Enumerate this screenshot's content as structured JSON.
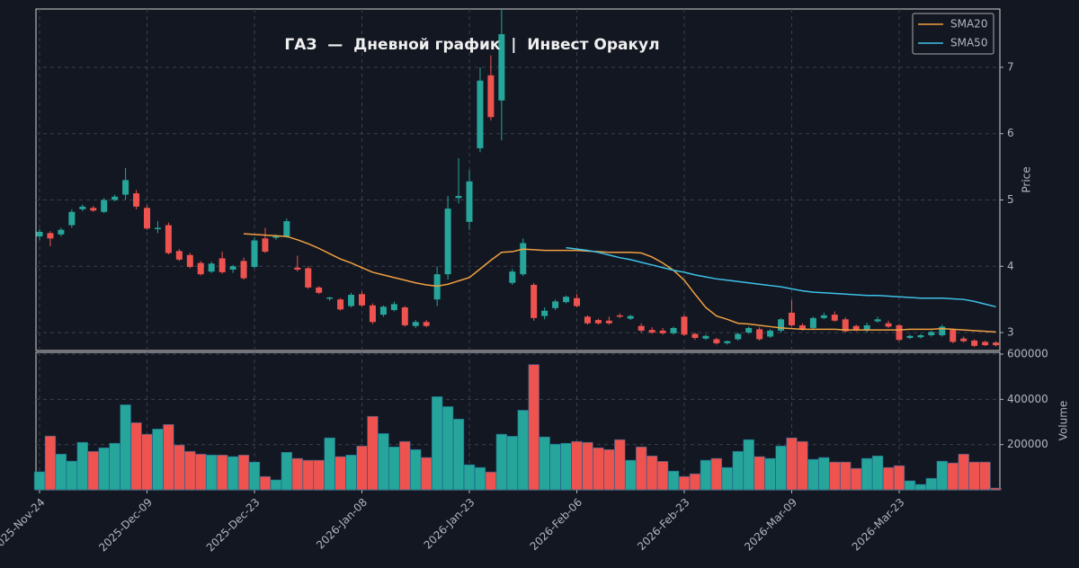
{
  "chart_data": {
    "type": "candlestick",
    "title": "ГАЗ  —  Дневной график  |  Инвест Оракул",
    "ylabel": "Price",
    "categories": [
      "2025-Nov-24",
      null,
      null,
      null,
      null,
      null,
      null,
      null,
      null,
      null,
      "2025-Dec-09",
      null,
      null,
      null,
      null,
      null,
      null,
      null,
      null,
      null,
      "2025-Dec-23",
      null,
      null,
      null,
      null,
      null,
      null,
      null,
      null,
      null,
      "2026-Jan-08",
      null,
      null,
      null,
      null,
      null,
      null,
      null,
      null,
      null,
      "2026-Jan-23",
      null,
      null,
      null,
      null,
      null,
      null,
      null,
      null,
      null,
      "2026-Feb-06",
      null,
      null,
      null,
      null,
      null,
      null,
      null,
      null,
      null,
      "2026-Feb-23",
      null,
      null,
      null,
      null,
      null,
      null,
      null,
      null,
      null,
      "2026-Mar-09",
      null,
      null,
      null,
      null,
      null,
      null,
      null,
      null,
      null,
      "2026-Mar-23",
      null,
      null,
      null,
      null,
      null,
      null,
      null,
      null,
      null
    ],
    "open": [
      4.45,
      4.5,
      4.48,
      4.62,
      4.86,
      4.88,
      4.82,
      5.0,
      5.08,
      5.1,
      4.88,
      4.56,
      4.62,
      4.23,
      4.17,
      4.05,
      3.92,
      4.12,
      3.95,
      4.08,
      3.99,
      4.42,
      4.43,
      4.45,
      3.98,
      3.97,
      3.68,
      3.51,
      3.5,
      3.4,
      3.58,
      3.41,
      3.27,
      3.34,
      3.38,
      3.1,
      3.16,
      3.5,
      3.88,
      5.03,
      4.67,
      5.78,
      6.88,
      6.5,
      3.75,
      3.88,
      3.72,
      3.25,
      3.37,
      3.46,
      3.52,
      3.24,
      3.19,
      3.18,
      3.26,
      3.21,
      3.1,
      3.04,
      3.03,
      2.99,
      3.24,
      2.98,
      2.91,
      2.9,
      2.84,
      2.9,
      3.0,
      3.05,
      2.94,
      3.03,
      3.3,
      3.11,
      3.07,
      3.22,
      3.27,
      3.2,
      3.1,
      3.03,
      3.17,
      3.14,
      3.11,
      2.92,
      2.93,
      2.96,
      2.96,
      3.04,
      2.91,
      2.88,
      2.86,
      2.85
    ],
    "high": [
      4.56,
      4.53,
      4.58,
      4.86,
      4.93,
      4.91,
      5.03,
      5.08,
      5.48,
      5.15,
      4.92,
      4.68,
      4.66,
      4.26,
      4.2,
      4.08,
      4.07,
      4.22,
      4.02,
      4.13,
      4.44,
      4.58,
      4.48,
      4.72,
      4.16,
      4.0,
      3.7,
      3.54,
      3.52,
      3.6,
      3.62,
      3.44,
      3.41,
      3.47,
      3.4,
      3.19,
      3.19,
      4.0,
      5.06,
      5.63,
      5.45,
      7.0,
      7.18,
      7.88,
      3.96,
      4.42,
      3.75,
      3.38,
      3.5,
      3.56,
      3.58,
      3.26,
      3.21,
      3.24,
      3.29,
      3.27,
      3.14,
      3.08,
      3.07,
      3.09,
      3.27,
      3.0,
      2.97,
      2.92,
      2.88,
      3.0,
      3.09,
      3.08,
      3.05,
      3.22,
      3.49,
      3.14,
      3.24,
      3.3,
      3.32,
      3.23,
      3.12,
      3.15,
      3.24,
      3.18,
      3.13,
      2.97,
      2.98,
      3.03,
      3.12,
      3.06,
      2.94,
      2.9,
      2.88,
      2.87
    ],
    "low": [
      4.4,
      4.3,
      4.45,
      4.58,
      4.83,
      4.82,
      4.8,
      4.98,
      5.0,
      4.86,
      4.55,
      4.5,
      4.18,
      4.08,
      3.97,
      3.86,
      3.9,
      3.89,
      3.9,
      3.8,
      3.97,
      4.2,
      4.4,
      4.43,
      3.92,
      3.66,
      3.58,
      3.48,
      3.33,
      3.38,
      3.39,
      3.13,
      3.24,
      3.32,
      3.09,
      3.07,
      3.08,
      3.4,
      3.8,
      4.95,
      4.55,
      5.72,
      6.2,
      5.9,
      3.72,
      3.85,
      3.18,
      3.2,
      3.34,
      3.44,
      3.38,
      3.12,
      3.12,
      3.12,
      3.22,
      3.19,
      3.0,
      2.98,
      2.97,
      2.97,
      2.95,
      2.89,
      2.89,
      2.82,
      2.82,
      2.88,
      2.98,
      2.88,
      2.92,
      3.0,
      3.09,
      3.03,
      3.05,
      3.2,
      3.16,
      3.0,
      3.02,
      3.0,
      3.15,
      3.07,
      2.87,
      2.9,
      2.91,
      2.94,
      2.94,
      2.84,
      2.85,
      2.78,
      2.8,
      2.79
    ],
    "close": [
      4.52,
      4.42,
      4.55,
      4.82,
      4.9,
      4.84,
      5.0,
      5.05,
      5.3,
      4.9,
      4.57,
      4.58,
      4.2,
      4.1,
      3.99,
      3.88,
      4.04,
      3.91,
      4.0,
      3.82,
      4.39,
      4.22,
      4.46,
      4.68,
      3.95,
      3.68,
      3.6,
      3.53,
      3.35,
      3.57,
      3.41,
      3.16,
      3.39,
      3.43,
      3.11,
      3.16,
      3.1,
      3.88,
      4.87,
      5.06,
      5.28,
      6.8,
      6.25,
      7.5,
      3.92,
      4.35,
      3.22,
      3.33,
      3.47,
      3.54,
      3.4,
      3.14,
      3.14,
      3.14,
      3.24,
      3.25,
      3.03,
      3.0,
      2.99,
      3.07,
      2.97,
      2.92,
      2.95,
      2.84,
      2.87,
      2.98,
      3.07,
      2.9,
      3.03,
      3.2,
      3.11,
      3.05,
      3.22,
      3.26,
      3.18,
      3.02,
      3.04,
      3.11,
      3.2,
      3.09,
      2.89,
      2.95,
      2.96,
      3.01,
      3.09,
      2.86,
      2.87,
      2.8,
      2.81,
      2.81
    ],
    "up_color": "#26a69a",
    "down_color": "#ef5350",
    "ylim": [
      2.73,
      7.88
    ],
    "yticks": [
      3,
      4,
      5,
      6,
      7
    ],
    "grid": true,
    "legend": "upper right",
    "series": [
      {
        "name": "SMA20",
        "color": "#f0a040",
        "values": [
          null,
          null,
          null,
          null,
          null,
          null,
          null,
          null,
          null,
          null,
          null,
          null,
          null,
          null,
          null,
          null,
          null,
          null,
          null,
          4.49,
          4.48,
          4.47,
          4.46,
          4.45,
          4.4,
          4.34,
          4.27,
          4.19,
          4.11,
          4.05,
          3.98,
          3.91,
          3.87,
          3.83,
          3.79,
          3.75,
          3.72,
          3.7,
          3.73,
          3.78,
          3.83,
          3.96,
          4.09,
          4.21,
          4.22,
          4.26,
          4.25,
          4.24,
          4.24,
          4.24,
          4.24,
          4.23,
          4.22,
          4.21,
          4.21,
          4.21,
          4.2,
          4.14,
          4.05,
          3.94,
          3.79,
          3.58,
          3.38,
          3.25,
          3.2,
          3.14,
          3.13,
          3.11,
          3.09,
          3.07,
          3.06,
          3.05,
          3.05,
          3.05,
          3.05,
          3.04,
          3.04,
          3.04,
          3.04,
          3.04,
          3.04,
          3.05,
          3.05,
          3.05,
          3.06,
          3.05,
          3.04,
          3.03,
          3.02,
          3.01
        ]
      },
      {
        "name": "SMA50",
        "color": "#3ec1e6",
        "values": [
          null,
          null,
          null,
          null,
          null,
          null,
          null,
          null,
          null,
          null,
          null,
          null,
          null,
          null,
          null,
          null,
          null,
          null,
          null,
          null,
          null,
          null,
          null,
          null,
          null,
          null,
          null,
          null,
          null,
          null,
          null,
          null,
          null,
          null,
          null,
          null,
          null,
          null,
          null,
          null,
          null,
          null,
          null,
          null,
          null,
          null,
          null,
          null,
          null,
          4.28,
          4.26,
          4.24,
          4.21,
          4.17,
          4.13,
          4.1,
          4.06,
          4.02,
          3.98,
          3.94,
          3.91,
          3.87,
          3.84,
          3.81,
          3.79,
          3.77,
          3.75,
          3.73,
          3.71,
          3.69,
          3.66,
          3.63,
          3.61,
          3.6,
          3.59,
          3.58,
          3.57,
          3.56,
          3.56,
          3.55,
          3.54,
          3.53,
          3.52,
          3.52,
          3.52,
          3.51,
          3.5,
          3.47,
          3.43,
          3.39
        ]
      }
    ],
    "volume": {
      "label": "Volume",
      "ylim": [
        0,
        608000
      ],
      "yticks": [
        200000,
        400000,
        600000
      ],
      "values": [
        80000,
        238000,
        158000,
        127000,
        210000,
        170000,
        186000,
        206000,
        376000,
        297000,
        246000,
        269000,
        289000,
        198000,
        170000,
        158000,
        154000,
        154000,
        147000,
        154000,
        123000,
        59000,
        44000,
        166000,
        139000,
        131000,
        131000,
        230000,
        147000,
        154000,
        194000,
        325000,
        249000,
        190000,
        214000,
        178000,
        143000,
        412000,
        368000,
        313000,
        111000,
        99000,
        79000,
        246000,
        237000,
        352000,
        554000,
        234000,
        202000,
        206000,
        214000,
        210000,
        186000,
        178000,
        222000,
        131000,
        190000,
        150000,
        126000,
        83000,
        59000,
        71000,
        131000,
        139000,
        99000,
        170000,
        222000,
        147000,
        139000,
        194000,
        230000,
        214000,
        135000,
        143000,
        123000,
        123000,
        95000,
        139000,
        150000,
        99000,
        107000,
        40000,
        24000,
        51000,
        127000,
        119000,
        158000,
        123000,
        123000,
        8000
      ]
    }
  }
}
